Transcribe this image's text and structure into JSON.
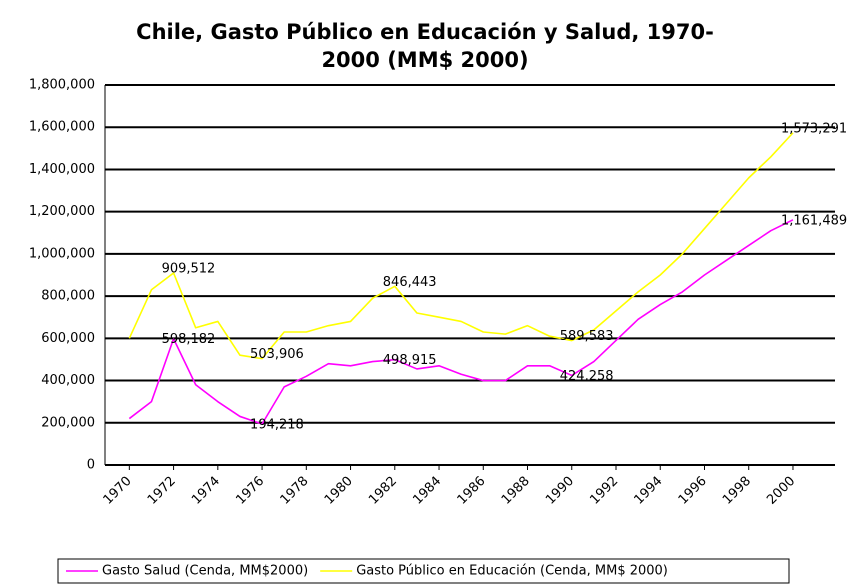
{
  "chart_data": {
    "type": "line",
    "title": [
      "Chile, Gasto Público en Educación y Salud, 1970-",
      "2000 (MM$ 2000)"
    ],
    "x": [
      1970,
      1971,
      1972,
      1973,
      1974,
      1975,
      1976,
      1977,
      1978,
      1979,
      1980,
      1981,
      1982,
      1983,
      1984,
      1985,
      1986,
      1987,
      1988,
      1989,
      1990,
      1991,
      1992,
      1993,
      1994,
      1995,
      1996,
      1997,
      1998,
      1999,
      2000
    ],
    "xlim": [
      1968.9,
      2001.9
    ],
    "xticks": [
      1970,
      1972,
      1974,
      1976,
      1978,
      1980,
      1982,
      1984,
      1986,
      1988,
      1990,
      1992,
      1994,
      1996,
      1998,
      2000
    ],
    "ylim": [
      0,
      1800000
    ],
    "yticks": [
      0,
      {
        "value": 200000,
        "label": "200,000"
      },
      {
        "value": 400000,
        "label": "400,000"
      },
      {
        "value": 600000,
        "label": "600,000"
      },
      {
        "value": 800000,
        "label": "800,000"
      },
      {
        "value": 1000000,
        "label": "1,000,000"
      },
      {
        "value": 1200000,
        "label": "1,200,000"
      },
      {
        "value": 1400000,
        "label": "1,400,000"
      },
      {
        "value": 1600000,
        "label": "1,600,000"
      },
      {
        "value": 1800000,
        "label": "1,800,000"
      }
    ],
    "grid": true,
    "series": [
      {
        "name": "Gasto Salud (Cenda, MM$2000)",
        "color": "#ff00ff",
        "values": [
          220000,
          300000,
          598182,
          380000,
          300000,
          230000,
          194218,
          370000,
          420000,
          480000,
          470000,
          490000,
          498915,
          455000,
          470000,
          430000,
          400000,
          400000,
          470000,
          470000,
          424258,
          490000,
          590000,
          690000,
          760000,
          820000,
          900000,
          970000,
          1040000,
          1110000,
          1161489
        ],
        "value_labels": [
          null,
          null,
          "598,182",
          null,
          null,
          null,
          "194,218",
          null,
          null,
          null,
          null,
          null,
          "498,915",
          null,
          null,
          null,
          null,
          null,
          null,
          null,
          "424,258",
          null,
          null,
          null,
          null,
          null,
          null,
          null,
          null,
          null,
          "1,161,489"
        ]
      },
      {
        "name": "Gasto Público en Educación (Cenda, MM$ 2000)",
        "color": "#ffff00",
        "values": [
          600000,
          830000,
          909512,
          650000,
          680000,
          520000,
          503906,
          630000,
          630000,
          660000,
          680000,
          790000,
          846443,
          720000,
          700000,
          680000,
          630000,
          620000,
          660000,
          610000,
          589583,
          640000,
          730000,
          820000,
          900000,
          1000000,
          1120000,
          1240000,
          1360000,
          1460000,
          1573291
        ],
        "value_labels": [
          null,
          null,
          "909,512",
          null,
          null,
          null,
          "503,906",
          null,
          null,
          null,
          null,
          null,
          "846,443",
          null,
          null,
          null,
          null,
          null,
          null,
          null,
          "589,583",
          null,
          null,
          null,
          null,
          null,
          null,
          null,
          null,
          null,
          "1,573,291"
        ]
      }
    ]
  }
}
